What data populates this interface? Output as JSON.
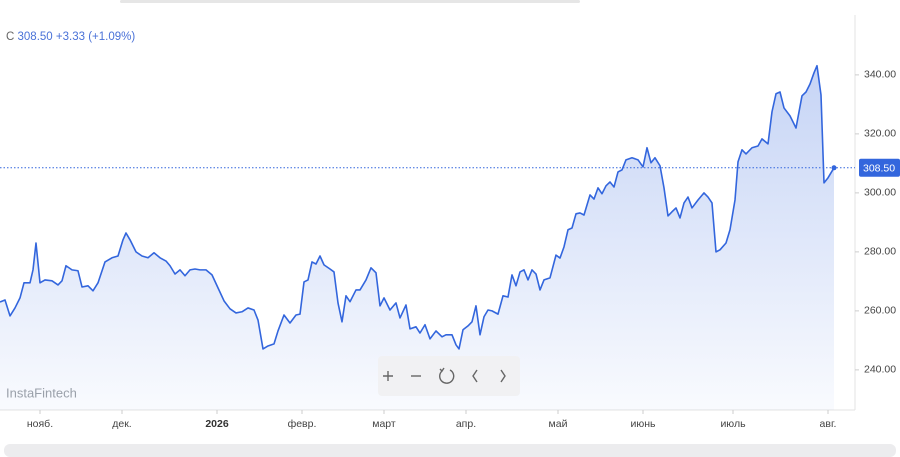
{
  "chart_data": {
    "type": "area",
    "symbol": "C",
    "last_price": {
      "value": 308.5,
      "label": "308.50"
    },
    "change": "+3.33",
    "change_pct": "(+1.09%)",
    "watermark": "InstaFintech",
    "color": "#3366dd",
    "x": [
      0,
      5,
      10,
      15,
      20,
      24,
      30,
      33,
      36,
      40,
      45,
      52,
      58,
      62,
      66,
      72,
      78,
      82,
      88,
      93,
      98,
      105,
      112,
      118,
      123,
      126,
      130,
      136,
      142,
      148,
      154,
      160,
      166,
      170,
      175,
      180,
      185,
      190,
      195,
      200,
      206,
      212,
      218,
      224,
      230,
      236,
      242,
      248,
      254,
      258,
      263,
      268,
      274,
      278,
      284,
      290,
      296,
      300,
      304,
      308,
      312,
      316,
      320,
      324,
      330,
      334,
      338,
      342,
      346,
      350,
      356,
      360,
      366,
      371,
      376,
      380,
      384,
      390,
      396,
      400,
      406,
      410,
      416,
      420,
      425,
      430,
      436,
      442,
      446,
      452,
      456,
      459,
      463,
      468,
      472,
      476,
      480,
      484,
      488,
      492,
      498,
      503,
      508,
      512,
      516,
      520,
      524,
      528,
      532,
      536,
      540,
      544,
      550,
      556,
      560,
      564,
      568,
      572,
      576,
      580,
      584,
      590,
      594,
      598,
      602,
      606,
      610,
      614,
      618,
      622,
      626,
      632,
      638,
      643,
      647,
      651,
      655,
      660,
      664,
      668,
      672,
      676,
      680,
      684,
      688,
      692,
      698,
      704,
      708,
      712,
      716,
      720,
      726,
      730,
      735,
      738,
      742,
      746,
      752,
      758,
      762,
      768,
      772,
      776,
      780,
      784,
      790,
      796,
      802,
      806,
      810,
      814,
      817,
      821,
      824,
      828,
      834
    ],
    "values": [
      263.0,
      263.7,
      258.3,
      261.0,
      264.4,
      269.5,
      269.5,
      273.9,
      283.0,
      269.5,
      270.5,
      270.2,
      268.8,
      270.2,
      275.3,
      273.9,
      273.6,
      268.1,
      268.5,
      266.8,
      269.5,
      276.6,
      278.0,
      278.6,
      284.1,
      286.4,
      284.1,
      280.0,
      278.6,
      278.0,
      279.7,
      278.0,
      276.9,
      275.3,
      272.5,
      273.9,
      271.9,
      273.9,
      274.2,
      273.9,
      273.9,
      272.2,
      267.8,
      263.4,
      260.7,
      259.3,
      259.7,
      261.0,
      260.3,
      256.9,
      247.1,
      248.1,
      248.8,
      253.2,
      258.6,
      255.9,
      258.6,
      258.9,
      269.8,
      270.5,
      276.6,
      275.9,
      278.6,
      275.6,
      274.2,
      273.2,
      262.7,
      256.3,
      265.1,
      263.1,
      267.1,
      267.1,
      270.5,
      274.6,
      272.9,
      261.7,
      264.4,
      260.3,
      262.7,
      257.6,
      262.0,
      253.9,
      254.6,
      252.5,
      255.3,
      250.5,
      253.2,
      251.2,
      251.9,
      251.9,
      248.5,
      247.1,
      253.6,
      254.9,
      256.3,
      261.7,
      251.9,
      258.0,
      260.3,
      260.0,
      258.9,
      265.1,
      264.7,
      272.2,
      268.5,
      273.2,
      273.9,
      270.5,
      273.9,
      272.5,
      267.1,
      270.5,
      271.2,
      278.9,
      277.9,
      281.7,
      287.5,
      288.1,
      292.9,
      293.2,
      292.5,
      299.3,
      297.9,
      301.7,
      299.7,
      302.4,
      303.7,
      302.0,
      307.1,
      307.8,
      311.2,
      311.9,
      311.2,
      308.8,
      315.3,
      310.2,
      311.9,
      309.2,
      301.7,
      292.2,
      293.6,
      294.9,
      291.5,
      296.6,
      298.6,
      294.9,
      297.6,
      300.0,
      298.6,
      296.6,
      280.0,
      280.7,
      283.0,
      287.5,
      297.6,
      310.5,
      314.6,
      313.2,
      315.3,
      315.9,
      318.3,
      316.6,
      327.5,
      333.6,
      334.2,
      328.8,
      326.1,
      322.0,
      332.9,
      334.2,
      336.9,
      340.7,
      343.1,
      333.2,
      303.4,
      305.1,
      308.5
    ],
    "xlim": [
      0,
      855
    ],
    "xticks": [
      {
        "value": 40,
        "label": "нояб."
      },
      {
        "value": 122,
        "label": "дек."
      },
      {
        "value": 217,
        "label": "2026"
      },
      {
        "value": 302,
        "label": "февр."
      },
      {
        "value": 384,
        "label": "март"
      },
      {
        "value": 466,
        "label": "апр."
      },
      {
        "value": 558,
        "label": "май"
      },
      {
        "value": 643,
        "label": "июнь"
      },
      {
        "value": 733,
        "label": "июль"
      },
      {
        "value": 828,
        "label": "авг."
      }
    ],
    "ylim": [
      226.4,
      360.3
    ],
    "yticks": [
      {
        "value": 240,
        "label": "240.00"
      },
      {
        "value": 260,
        "label": "260.00"
      },
      {
        "value": 280,
        "label": "280.00"
      },
      {
        "value": 300,
        "label": "300.00"
      },
      {
        "value": 320,
        "label": "320.00"
      },
      {
        "value": 340,
        "label": "340.00"
      }
    ],
    "grid": false
  }
}
